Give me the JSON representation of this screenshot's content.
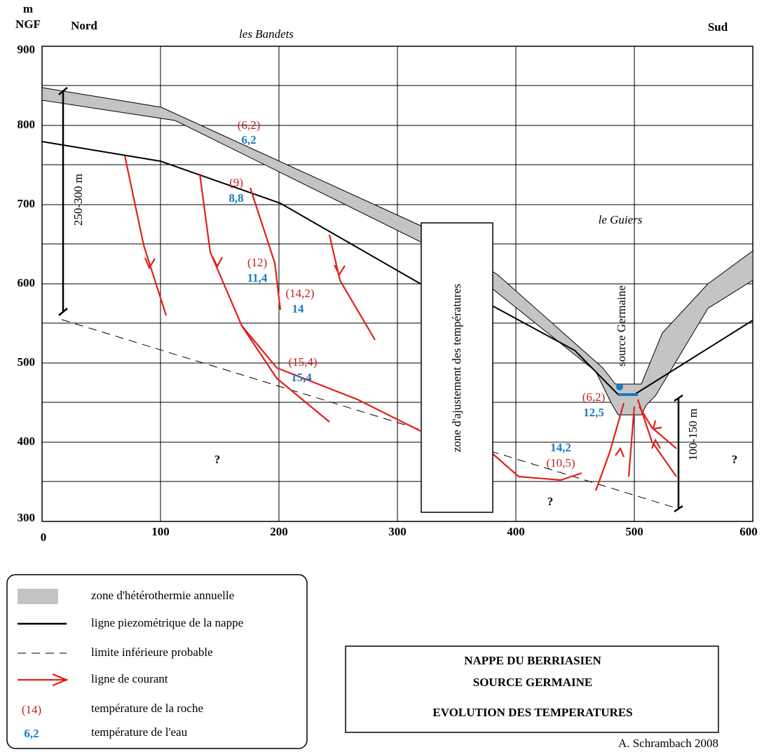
{
  "axis": {
    "y_unit": "m",
    "y_unit_2": "NGF",
    "x_ticks": [
      0,
      100,
      200,
      300,
      400,
      500,
      600
    ],
    "y_ticks": [
      900,
      800,
      700,
      600,
      500,
      400,
      300
    ]
  },
  "labels": {
    "north": "Nord",
    "south": "Sud",
    "place_1": "les Bandets",
    "place_2": "le Guiers",
    "thickness_left": "250-300 m",
    "thickness_right": "100-150 m",
    "zone": "zone d'ajustement des températures",
    "source": "source Germaine",
    "unknown": [
      "?",
      "?",
      "?"
    ]
  },
  "temperatures": [
    {
      "rock": "(6,2)",
      "water": "6,2"
    },
    {
      "rock": "(9)",
      "water": "8,8"
    },
    {
      "rock": "(12)",
      "water": "11,4"
    },
    {
      "rock": "(14,2)",
      "water": "14"
    },
    {
      "rock": "(15,4)",
      "water": "15,4"
    },
    {
      "rock": "(6,2)",
      "water": "12,5"
    },
    {
      "rock": "(10,5)",
      "water": "14,2"
    }
  ],
  "legend": [
    {
      "label": "zone d'hétérothermie annuelle"
    },
    {
      "label": "ligne piezométrique de la nappe"
    },
    {
      "label": "limite inférieure probable"
    },
    {
      "label": "ligne de courant"
    },
    {
      "symbol": "(14)",
      "label": "température de la roche"
    },
    {
      "symbol": "6,2",
      "label": "température de l'eau"
    }
  ],
  "title": [
    "NAPPE DU BERRIASIEN",
    "SOURCE GERMAINE",
    "EVOLUTION DES TEMPERATURES"
  ],
  "credit": "A. Schrambach 2008"
}
